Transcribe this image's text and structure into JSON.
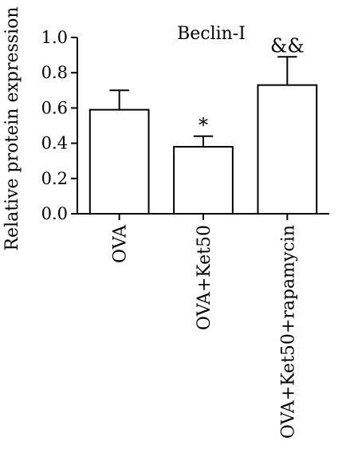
{
  "chart_data": {
    "type": "bar",
    "title": "Beclin-I",
    "xlabel": "",
    "ylabel": "Relative protein expression",
    "ylim": [
      0,
      1.0
    ],
    "yticks": [
      0.0,
      0.2,
      0.4,
      0.6,
      0.8,
      1.0
    ],
    "ytick_labels": [
      "0.0",
      "0.2",
      "0.4",
      "0.6",
      "0.8",
      "1.0"
    ],
    "categories": [
      "OVA",
      "OVA+Ket50",
      "OVA+Ket50+rapamycin"
    ],
    "values": [
      0.59,
      0.38,
      0.73
    ],
    "error_upper": [
      0.11,
      0.06,
      0.16
    ],
    "annotations": [
      "",
      "*",
      "&&"
    ],
    "bar_fill": "#ffffff",
    "bar_stroke": "#000000",
    "grid": false,
    "legend": "none"
  }
}
